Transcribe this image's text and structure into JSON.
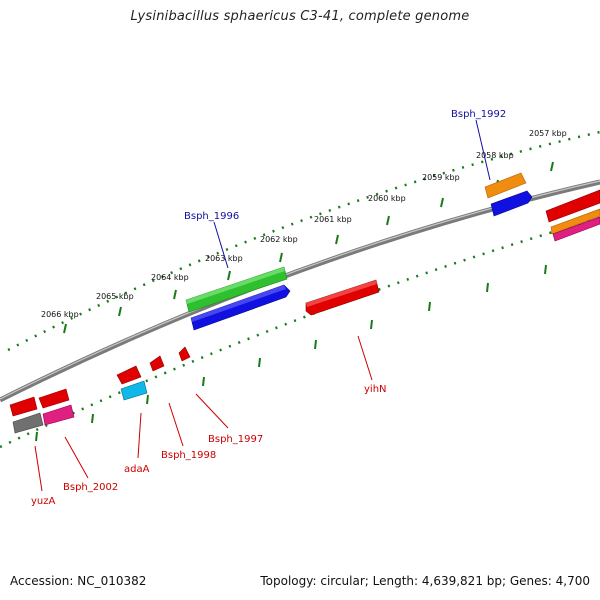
{
  "title": "Lysinibacillus sphaericus C3-41, complete genome",
  "footer": {
    "accession": "Accession: NC_010382",
    "topology": "Topology: circular; Length: 4,639,821 bp; Genes: 4,700"
  },
  "kbp_labels": [
    "2057 kbp",
    "2058 kbp",
    "2059 kbp",
    "2060 kbp",
    "2061 kbp",
    "2062 kbp",
    "2063 kbp",
    "2064 kbp",
    "2065 kbp",
    "2066 kbp"
  ],
  "gene_labels": {
    "top": [
      "Bsph_1992",
      "Bsph_1996"
    ],
    "bottom": [
      "yihN",
      "Bsph_1997",
      "Bsph_1998",
      "adaA",
      "Bsph_2002",
      "yuzA"
    ]
  },
  "colors": {
    "backbone": "#8c8c8c",
    "tick": "#1a7a1a",
    "red": "#e00000",
    "blue": "#1010e0",
    "green": "#2ec02e",
    "orange": "#f08c10",
    "magenta": "#e02080",
    "cyan": "#10b8e8",
    "gray": "#707070",
    "label_top": "#1010a0",
    "label_bottom": "#cc0000"
  }
}
